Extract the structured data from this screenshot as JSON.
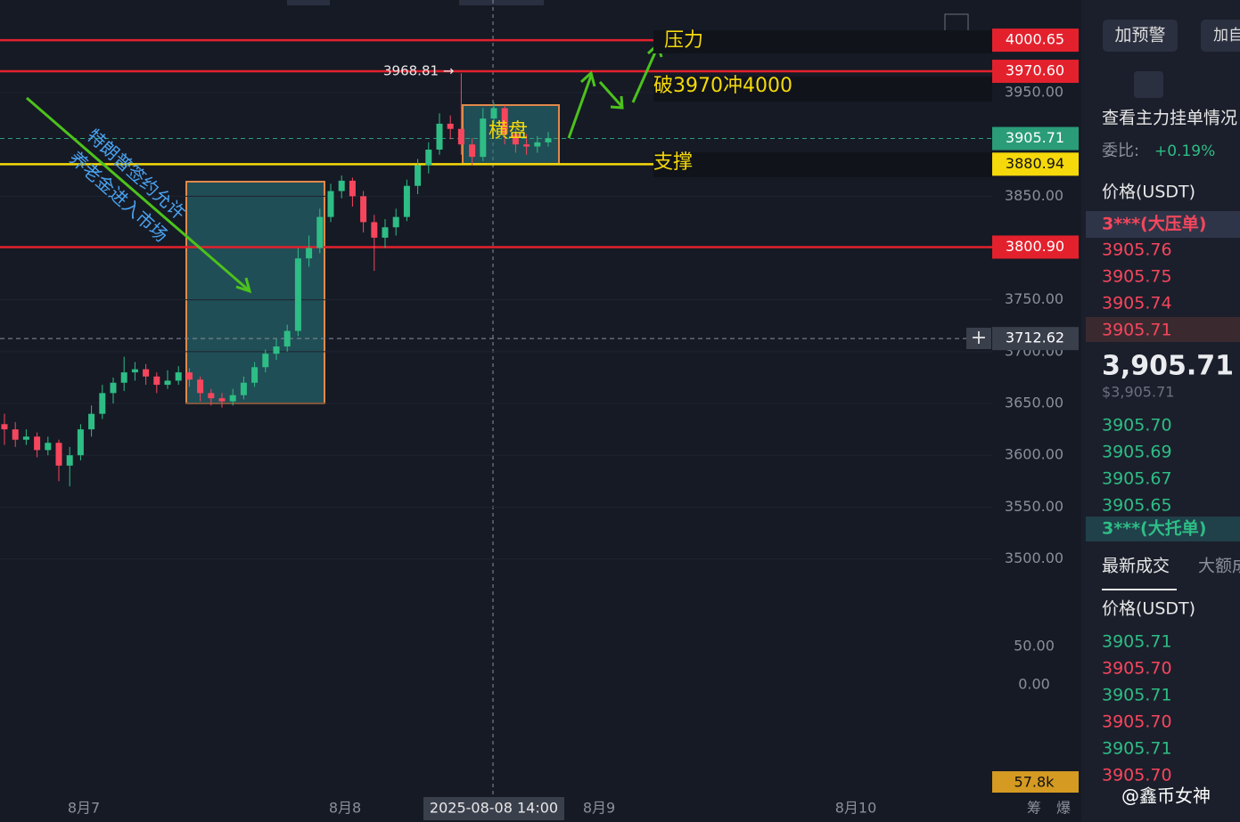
{
  "chart": {
    "type": "candlestick",
    "ylim": [
      3446.3,
      4039.4
    ],
    "yticks": [
      {
        "value": 3950,
        "label": "3950.00"
      },
      {
        "value": 3850,
        "label": "3850.00"
      },
      {
        "value": 3750,
        "label": "3750.00"
      },
      {
        "value": 3700,
        "label": "3700.00"
      },
      {
        "value": 3650,
        "label": "3650.00"
      },
      {
        "value": 3600,
        "label": "3600.00"
      },
      {
        "value": 3550,
        "label": "3550.00"
      },
      {
        "value": 3500,
        "label": "3500.00"
      }
    ],
    "price_lines": [
      {
        "value": 4000.65,
        "label": "4000.65",
        "color": "#e3212d"
      },
      {
        "value": 3970.6,
        "label": "3970.60",
        "color": "#e3212d"
      },
      {
        "value": 3905.71,
        "label": "3905.71",
        "color": "#2a9d78"
      },
      {
        "value": 3880.94,
        "label": "3880.94",
        "color": "#f5d90a"
      },
      {
        "value": 3800.9,
        "label": "3800.90",
        "color": "#e3212d"
      },
      {
        "value": 3712.62,
        "label": "3712.62",
        "color": "#3a3f4c"
      }
    ],
    "high_label": "3968.81 →",
    "candles": [
      [
        3630,
        3640,
        3610,
        3625
      ],
      [
        3625,
        3632,
        3608,
        3615
      ],
      [
        3615,
        3625,
        3610,
        3618
      ],
      [
        3618,
        3622,
        3598,
        3605
      ],
      [
        3605,
        3618,
        3600,
        3612
      ],
      [
        3612,
        3615,
        3575,
        3590
      ],
      [
        3590,
        3608,
        3570,
        3600
      ],
      [
        3600,
        3630,
        3595,
        3625
      ],
      [
        3625,
        3648,
        3618,
        3640
      ],
      [
        3640,
        3668,
        3635,
        3660
      ],
      [
        3660,
        3675,
        3650,
        3670
      ],
      [
        3670,
        3695,
        3662,
        3680
      ],
      [
        3680,
        3690,
        3672,
        3683
      ],
      [
        3683,
        3688,
        3668,
        3676
      ],
      [
        3676,
        3680,
        3660,
        3668
      ],
      [
        3668,
        3682,
        3664,
        3672
      ],
      [
        3672,
        3686,
        3668,
        3680
      ],
      [
        3680,
        3684,
        3666,
        3673
      ],
      [
        3673,
        3676,
        3652,
        3660
      ],
      [
        3660,
        3664,
        3648,
        3655
      ],
      [
        3655,
        3660,
        3646,
        3652
      ],
      [
        3652,
        3664,
        3648,
        3658
      ],
      [
        3658,
        3676,
        3654,
        3670
      ],
      [
        3670,
        3690,
        3666,
        3685
      ],
      [
        3685,
        3702,
        3680,
        3698
      ],
      [
        3698,
        3712,
        3692,
        3705
      ],
      [
        3705,
        3726,
        3700,
        3720
      ],
      [
        3720,
        3800,
        3715,
        3790
      ],
      [
        3790,
        3812,
        3782,
        3800
      ],
      [
        3800,
        3838,
        3795,
        3830
      ],
      [
        3830,
        3862,
        3825,
        3855
      ],
      [
        3855,
        3870,
        3848,
        3865
      ],
      [
        3865,
        3868,
        3840,
        3850
      ],
      [
        3850,
        3855,
        3815,
        3825
      ],
      [
        3825,
        3832,
        3778,
        3810
      ],
      [
        3810,
        3828,
        3800,
        3820
      ],
      [
        3820,
        3838,
        3812,
        3830
      ],
      [
        3830,
        3866,
        3826,
        3860
      ],
      [
        3860,
        3886,
        3852,
        3880
      ],
      [
        3880,
        3902,
        3872,
        3895
      ],
      [
        3895,
        3930,
        3890,
        3920
      ],
      [
        3920,
        3928,
        3905,
        3915
      ],
      [
        3915,
        3968.81,
        3890,
        3900
      ],
      [
        3900,
        3906,
        3880,
        3888
      ],
      [
        3888,
        3935,
        3884,
        3925
      ],
      [
        3925,
        3940,
        3920,
        3935
      ],
      [
        3935,
        3938,
        3900,
        3910
      ],
      [
        3910,
        3915,
        3892,
        3900
      ],
      [
        3900,
        3910,
        3890,
        3898
      ],
      [
        3898,
        3908,
        3892,
        3902
      ],
      [
        3902,
        3912,
        3898,
        3906
      ]
    ],
    "macd_ylim": [
      -36,
      80.2
    ],
    "macd_ticks": [
      {
        "value": 50,
        "label": "50.00"
      },
      {
        "value": 0,
        "label": "0.00"
      }
    ],
    "volume_label": "57.8k",
    "x_labels": [
      "8月7",
      "8月8",
      "8月9",
      "8月10"
    ],
    "crosshair_time": "2025-08-08 14:00",
    "bottom_icons": [
      "筹",
      "爆"
    ],
    "annotations": {
      "pressure": "压力",
      "breakout": "破3970冲4000",
      "support": "支撑",
      "range": "横盘",
      "news_1": "特朗普签约允许",
      "news_2": "养老金进入市场"
    }
  },
  "panel": {
    "alert_button": "加预警",
    "add_button": "加自",
    "main_orders": "查看主力挂单情况",
    "ratio_label": "委比:",
    "ratio_value": "+0.19%",
    "price_header": "价格(USDT)",
    "big_ask": "3***(大压单)",
    "asks": [
      "3905.76",
      "3905.75",
      "3905.74",
      "3905.71"
    ],
    "last_price": "3,905.71",
    "last_price_usd": "$3,905.71",
    "bids": [
      "3905.70",
      "3905.69",
      "3905.67",
      "3905.65"
    ],
    "big_bid": "3***(大托单)",
    "tabs": [
      "最新成交",
      "大额成"
    ],
    "trades_header": "价格(USDT)",
    "trades": [
      "3905.71",
      "3905.70",
      "3905.71",
      "3905.70",
      "3905.71",
      "3905.70"
    ],
    "watermark": "@鑫币女神"
  }
}
